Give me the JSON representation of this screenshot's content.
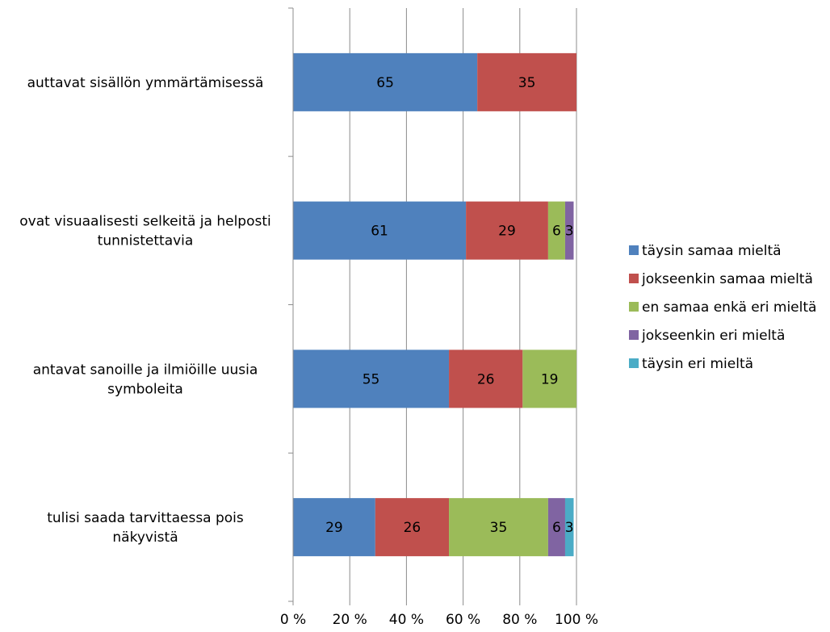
{
  "chart_data": {
    "type": "bar",
    "orientation": "horizontal",
    "stacked": "percent",
    "categories": [
      "auttavat sisällön ymmärtämisessä",
      "ovat visuaalisesti selkeitä ja helposti tunnistettavia",
      "antavat sanoille ja ilmiöille uusia symboleita",
      "tulisi saada tarvittaessa pois näkyvistä"
    ],
    "category_label_lines": [
      [
        "auttavat sisällön ymmärtämisessä"
      ],
      [
        "ovat visuaalisesti selkeitä ja helposti",
        "tunnistettavia"
      ],
      [
        "antavat sanoille ja ilmiöille uusia",
        "symboleita"
      ],
      [
        "tulisi saada tarvittaessa pois",
        "näkyvistä"
      ]
    ],
    "series": [
      {
        "name": "täysin samaa mieltä",
        "color": "#4F81BD",
        "values": [
          65,
          61,
          55,
          29
        ]
      },
      {
        "name": "jokseenkin samaa mieltä",
        "color": "#C0504D",
        "values": [
          35,
          29,
          26,
          26
        ]
      },
      {
        "name": "en samaa enkä eri mieltä",
        "color": "#9BBB59",
        "values": [
          0,
          6,
          19,
          35
        ]
      },
      {
        "name": "jokseenkin eri mieltä",
        "color": "#8064A2",
        "values": [
          0,
          3,
          0,
          6
        ]
      },
      {
        "name": "täysin eri mieltä",
        "color": "#4BACC6",
        "values": [
          0,
          0,
          0,
          3
        ]
      }
    ],
    "xlim": [
      0,
      100
    ],
    "x_tick_labels": [
      "0 %",
      "20 %",
      "40 %",
      "60 %",
      "80 %",
      "100 %"
    ],
    "grid": "vertical",
    "legend_position": "right",
    "title": "",
    "xlabel": "",
    "ylabel": ""
  }
}
